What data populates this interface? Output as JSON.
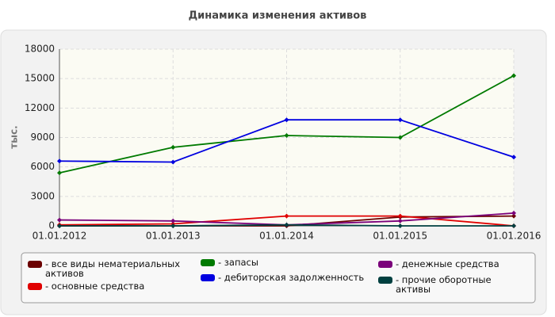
{
  "chart_data": {
    "type": "line",
    "title": "Динамика изменения активов",
    "y_label": "тыс.",
    "categories": [
      "01.01.2012",
      "01.01.2013",
      "01.01.2014",
      "01.01.2015",
      "01.01.2016"
    ],
    "ylim": [
      0,
      18000
    ],
    "yticks": [
      0,
      3000,
      6000,
      9000,
      12000,
      15000,
      18000
    ],
    "grid": true,
    "series": [
      {
        "name": "- все виды нематериальных активов",
        "color": "#6b0000",
        "values": [
          0,
          0,
          0,
          900,
          1000
        ]
      },
      {
        "name": "- основные средства",
        "color": "#e00000",
        "values": [
          100,
          200,
          1000,
          1000,
          0
        ]
      },
      {
        "name": "- запасы",
        "color": "#007a00",
        "values": [
          5400,
          8000,
          9200,
          9000,
          15300
        ]
      },
      {
        "name": "- дебиторская задолженность",
        "color": "#0000e0",
        "values": [
          6600,
          6500,
          10800,
          10800,
          7000
        ]
      },
      {
        "name": "- денежные средства",
        "color": "#7a007a",
        "values": [
          600,
          500,
          100,
          500,
          1300
        ]
      },
      {
        "name": "- прочие оборотные активы",
        "color": "#004040",
        "values": [
          0,
          0,
          100,
          0,
          0
        ]
      }
    ]
  }
}
